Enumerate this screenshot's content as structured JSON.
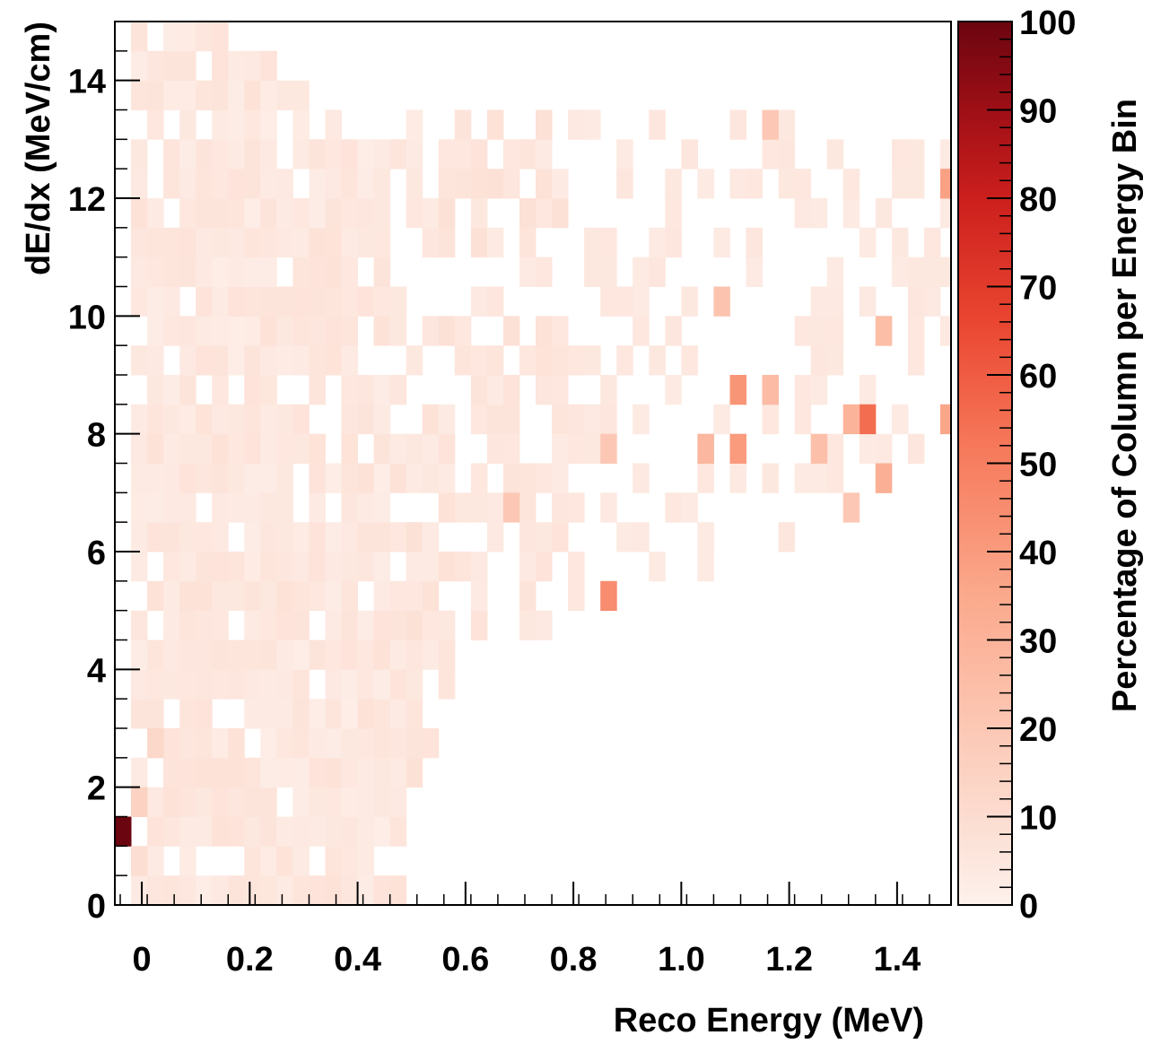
{
  "chart_data": {
    "type": "heatmap",
    "title": "",
    "xlabel": "Reco Energy (MeV)",
    "ylabel": "dE/dx (MeV/cm)",
    "zlabel": "Percentage of Column per Energy Bin",
    "x_bin_width": 0.03,
    "y_bin_width": 0.5,
    "xlim": [
      -0.05,
      1.5
    ],
    "ylim": [
      0,
      15
    ],
    "zlim": [
      0,
      100
    ],
    "x_ticks": [
      "0",
      "0.2",
      "0.4",
      "0.6",
      "0.8",
      "1.0",
      "1.2",
      "1.4"
    ],
    "y_ticks": [
      "0",
      "2",
      "4",
      "6",
      "8",
      "10",
      "12",
      "14"
    ],
    "z_ticks": [
      "0",
      "10",
      "20",
      "30",
      "40",
      "50",
      "60",
      "70",
      "80",
      "90",
      "100"
    ],
    "colormap": [
      "#fdf1ec",
      "#fcd2c2",
      "#fba98c",
      "#f6785a",
      "#ea4631",
      "#cc1f1d",
      "#9e0f16",
      "#6b0510"
    ],
    "note_cells": "cells listed as [x_center_MeV, y_center_MeV_per_cm, percent]",
    "cells": [
      [
        -0.035,
        1.25,
        100
      ],
      [
        -0.005,
        1.75,
        15
      ],
      [
        -0.005,
        0.75,
        9
      ],
      [
        0.025,
        2.75,
        12
      ],
      [
        0.865,
        5.25,
        45
      ],
      [
        1.345,
        8.25,
        55
      ],
      [
        1.105,
        8.75,
        42
      ],
      [
        1.105,
        7.75,
        40
      ],
      [
        1.495,
        12.25,
        38
      ],
      [
        1.495,
        8.25,
        36
      ],
      [
        1.375,
        7.25,
        32
      ],
      [
        1.315,
        8.25,
        30
      ],
      [
        1.045,
        7.75,
        28
      ],
      [
        1.165,
        8.75,
        26
      ],
      [
        1.255,
        7.75,
        24
      ],
      [
        1.375,
        9.75,
        25
      ],
      [
        0.685,
        6.75,
        20
      ],
      [
        0.865,
        7.75,
        20
      ],
      [
        1.075,
        10.25,
        22
      ],
      [
        1.165,
        13.25,
        20
      ],
      [
        1.315,
        6.75,
        20
      ]
    ]
  }
}
